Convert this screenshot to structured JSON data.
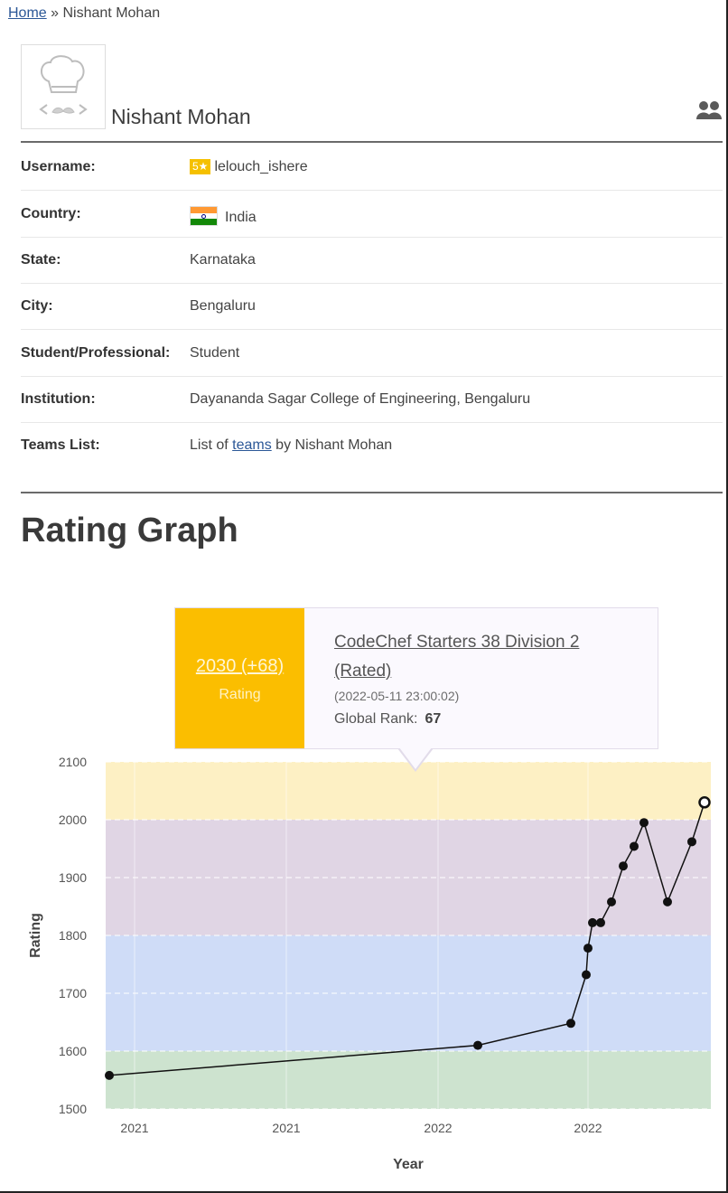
{
  "breadcrumb": {
    "home": "Home",
    "separator": "»",
    "current": "Nishant Mohan"
  },
  "profile": {
    "display_name": "Nishant Mohan",
    "avatar_icon": "chef-hat-mustache-icon",
    "team_icon": "users-icon"
  },
  "details": [
    {
      "label": "Username:",
      "badge": "5★",
      "value": "lelouch_ishere"
    },
    {
      "label": "Country:",
      "flag": "india-flag-icon",
      "value": "India"
    },
    {
      "label": "State:",
      "value": "Karnataka"
    },
    {
      "label": "City:",
      "value": "Bengaluru"
    },
    {
      "label": "Student/Professional:",
      "value": "Student"
    },
    {
      "label": "Institution:",
      "value": "Dayananda Sagar College of Engineering, Bengaluru"
    },
    {
      "label": "Teams List:",
      "prefix": "List of",
      "link": "teams",
      "suffix": "by Nishant Mohan"
    }
  ],
  "section_title": "Rating Graph",
  "tooltip": {
    "rating": "2030 (+68)",
    "rating_label": "Rating",
    "contest": "CodeChef Starters 38 Division 2 (Rated)",
    "date": "(2022-05-11 23:00:02)",
    "rank_label": "Global Rank:",
    "rank": "67"
  },
  "colors": {
    "band_yellow": "#fdf0c4",
    "band_purple": "#e0d5e4",
    "band_blue": "#cfdcf7",
    "band_green": "#cde3cf",
    "accent": "#fbbe00",
    "link": "#2b5797"
  },
  "chart_data": {
    "type": "line",
    "xlabel": "Year",
    "ylabel": "Rating",
    "ylim": [
      1500,
      2100
    ],
    "yticks": [
      1500,
      1600,
      1700,
      1800,
      1900,
      2000,
      2100
    ],
    "xtick_labels": [
      "2021",
      "2021",
      "2022",
      "2022"
    ],
    "bands": [
      {
        "from": 2000,
        "to": 2100,
        "color": "#fdf0c4"
      },
      {
        "from": 1800,
        "to": 2000,
        "color": "#e0d5e4"
      },
      {
        "from": 1600,
        "to": 1800,
        "color": "#cfdcf7"
      },
      {
        "from": 1500,
        "to": 1600,
        "color": "#cde3cf"
      }
    ],
    "grid": true,
    "x": [
      "2021-09",
      "2021-11",
      "2021-12",
      "2022-01",
      "2022-01",
      "2022-01",
      "2022-01",
      "2022-02",
      "2022-02",
      "2022-03",
      "2022-03",
      "2022-04",
      "2022-04",
      "2022-05"
    ],
    "values": [
      1558,
      1610,
      1648,
      1732,
      1778,
      1822,
      1822,
      1858,
      1920,
      1954,
      1995,
      1858,
      1962,
      2030
    ],
    "highlighted_point": 13
  }
}
